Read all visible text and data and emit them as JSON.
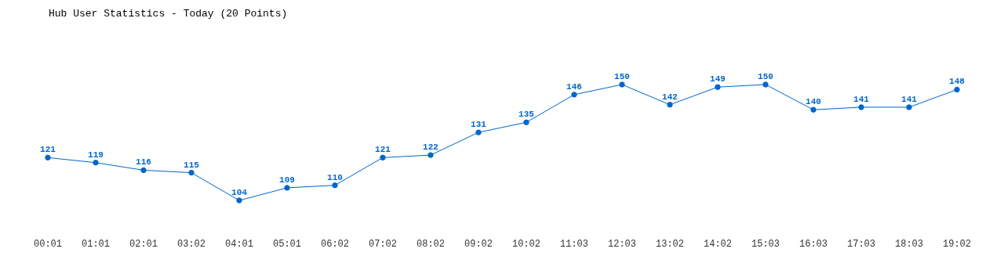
{
  "chart_data": {
    "type": "line",
    "title": "Hub User Statistics - Today (20 Points)",
    "categories": [
      "00:01",
      "01:01",
      "02:01",
      "03:02",
      "04:01",
      "05:01",
      "06:02",
      "07:02",
      "08:02",
      "09:02",
      "10:02",
      "11:03",
      "12:03",
      "13:02",
      "14:02",
      "15:03",
      "16:03",
      "17:03",
      "18:03",
      "19:02"
    ],
    "series": [
      {
        "color": "#0066cc",
        "values": [
          121,
          119,
          116,
          115,
          104,
          109,
          110,
          121,
          122,
          131,
          135,
          146,
          150,
          142,
          149,
          150,
          140,
          141,
          141,
          148
        ]
      }
    ],
    "data_labels": true,
    "marker": "circle",
    "tick_labels": "x"
  }
}
